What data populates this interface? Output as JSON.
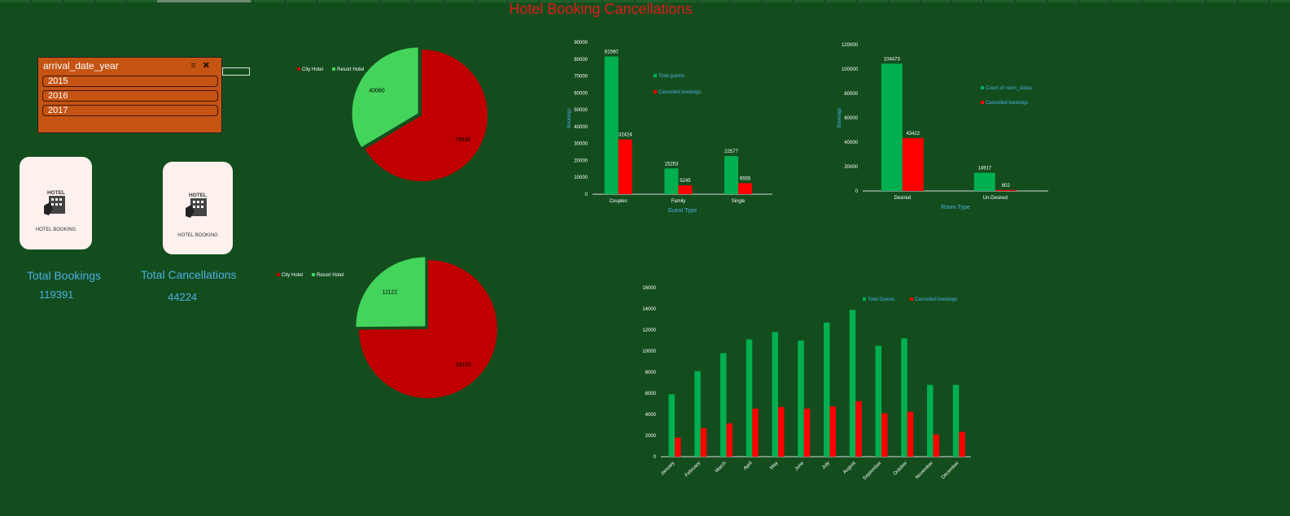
{
  "title": "Hotel Booking Cancellations",
  "slicer": {
    "header": "arrival_date_year",
    "items": [
      "2015",
      "2016",
      "2017"
    ]
  },
  "cards": [
    {
      "caption": "HOTEL BOOKING",
      "sign": "HOTEL",
      "label": "Total Bookings",
      "value": "119391"
    },
    {
      "caption": "HOTEL BOOKING",
      "sign": "HOTEL",
      "label": "Total Cancellations",
      "value": "44224"
    }
  ],
  "colors": {
    "city": "#c00000",
    "resort": "#44d45c",
    "total": "#00b050",
    "cancelled": "#ff0000",
    "axis_title": "#4eaee2"
  },
  "chart_data": [
    {
      "type": "pie",
      "legend": [
        "City Hotel",
        "Resort Hotel"
      ],
      "legend_position": "top-left",
      "slices": [
        {
          "name": "City Hotel",
          "value": 79330
        },
        {
          "name": "Resort Hotel",
          "value": 40060
        }
      ]
    },
    {
      "type": "pie",
      "legend": [
        "City Hotel",
        "Resort Hotel"
      ],
      "legend_position": "top-left",
      "slices": [
        {
          "name": "City Hotel",
          "value": 33102
        },
        {
          "name": "Resort Hotel",
          "value": 11122
        }
      ]
    },
    {
      "type": "bar",
      "categories": [
        "Couples",
        "Family",
        "Single"
      ],
      "series": [
        {
          "name": "Total guests",
          "values": [
            81560,
            15253,
            22577
          ]
        },
        {
          "name": "Cancelled bookings",
          "values": [
            32424,
            5245,
            6555
          ]
        }
      ],
      "xlabel": "Guest Type",
      "ylabel": "Bookings",
      "ylim": [
        0,
        90000
      ],
      "yticks": [
        "0",
        "10000",
        "20000",
        "30000",
        "40000",
        "50000",
        "60000",
        "70000",
        "80000",
        "90000"
      ],
      "legend_position": "right",
      "grid": false
    },
    {
      "type": "bar",
      "categories": [
        "Desired",
        "Un-Desired"
      ],
      "series": [
        {
          "name": "Count of room_status",
          "values": [
            104473,
            14917
          ]
        },
        {
          "name": "Cancelled bookings",
          "values": [
            43422,
            802
          ]
        }
      ],
      "xlabel": "Room Type",
      "ylabel": "Bookings",
      "ylim": [
        0,
        120000
      ],
      "yticks": [
        "0",
        "20000",
        "40000",
        "60000",
        "80000",
        "100000",
        "120000"
      ],
      "legend_position": "right",
      "grid": false
    },
    {
      "type": "bar",
      "categories": [
        "January",
        "February",
        "March",
        "April",
        "May",
        "June",
        "July",
        "August",
        "September",
        "October",
        "November",
        "December"
      ],
      "series": [
        {
          "name": "Total Guests",
          "values": [
            5900,
            8100,
            9800,
            11100,
            11800,
            11000,
            12700,
            13900,
            10500,
            11200,
            6800,
            6800
          ]
        },
        {
          "name": "Cancelled bookings",
          "values": [
            1800,
            2700,
            3150,
            4550,
            4700,
            4550,
            4750,
            5250,
            4100,
            4250,
            2100,
            2350
          ]
        }
      ],
      "xlabel": "",
      "ylabel": "",
      "ylim": [
        0,
        16000
      ],
      "yticks": [
        "0",
        "2000",
        "4000",
        "6000",
        "8000",
        "10000",
        "12000",
        "14000",
        "16000"
      ],
      "legend_position": "top",
      "grid": false
    }
  ]
}
